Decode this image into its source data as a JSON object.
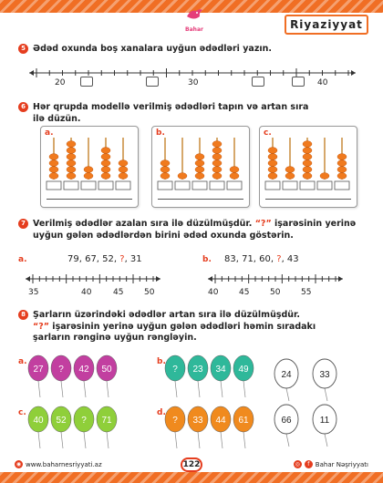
{
  "header": {
    "brand": "Bahar",
    "brand_sub": "Nəşriyyatı",
    "subject": "Riyaziyyat"
  },
  "colors": {
    "accent": "#f06e24",
    "task_badge": "#e53d1e"
  },
  "task5": {
    "num": "5",
    "text": "Ədəd oxunda boş xanalara uyğun ədədləri yazın.",
    "labels": [
      "20",
      "30",
      "40"
    ]
  },
  "task6": {
    "num": "6",
    "line1": "Hər qrupda modellə verilmiş ədədləri tapın və artan sıra",
    "line2": "ilə düzün.",
    "cards": [
      {
        "letter": "a.",
        "rods": [
          4,
          6,
          2,
          5,
          3
        ]
      },
      {
        "letter": "b.",
        "rods": [
          3,
          1,
          4,
          6,
          2
        ]
      },
      {
        "letter": "c.",
        "rods": [
          5,
          2,
          6,
          1,
          4
        ]
      }
    ]
  },
  "task7": {
    "num": "7",
    "line1_pre": "Verilmiş ədədlər azalan sıra ilə düzülmüşdür. ",
    "line1_q": "“?”",
    "line1_post": " işarəsinin yerinə",
    "line2": "uyğun gələn ədədlərdən birini ədəd oxunda göstərin.",
    "a": {
      "letter": "a.",
      "seq": "79, 67, 52, ",
      "q": "?",
      "tail": ", 31",
      "labels": [
        "35",
        "40",
        "45",
        "50"
      ]
    },
    "b": {
      "letter": "b.",
      "seq": "83, 71, 60, ",
      "q": "?",
      "tail": ", 43",
      "labels": [
        "40",
        "45",
        "50",
        "55"
      ]
    }
  },
  "task8": {
    "num": "8",
    "line1": "Şarların üzərindəki ədədlər artan sıra ilə düzülmüşdür.",
    "line2_q": "“?”",
    "line2_post": " işarəsinin yerinə uyğun gələn ədədləri həmin sıradakı",
    "line3": "şarların rənginə uyğun rəngləyin.",
    "groups": [
      {
        "letter": "a.",
        "balloons": [
          {
            "t": "27",
            "c": "#c23fa0"
          },
          {
            "t": "?",
            "c": "#c23fa0"
          },
          {
            "t": "42",
            "c": "#c23fa0"
          },
          {
            "t": "50",
            "c": "#c23fa0"
          }
        ]
      },
      {
        "letter": "b.",
        "balloons": [
          {
            "t": "?",
            "c": "#2fb89a"
          },
          {
            "t": "23",
            "c": "#2fb89a"
          },
          {
            "t": "34",
            "c": "#2fb89a"
          },
          {
            "t": "49",
            "c": "#2fb89a"
          }
        ]
      },
      {
        "letter": "c.",
        "balloons": [
          {
            "t": "40",
            "c": "#8fcf3a"
          },
          {
            "t": "52",
            "c": "#8fcf3a"
          },
          {
            "t": "?",
            "c": "#8fcf3a"
          },
          {
            "t": "71",
            "c": "#8fcf3a"
          }
        ]
      },
      {
        "letter": "d.",
        "balloons": [
          {
            "t": "?",
            "c": "#f08a1e"
          },
          {
            "t": "33",
            "c": "#f08a1e"
          },
          {
            "t": "44",
            "c": "#f08a1e"
          },
          {
            "t": "61",
            "c": "#f08a1e"
          }
        ]
      }
    ],
    "blank_balloons": [
      "24",
      "33",
      "66",
      "11"
    ]
  },
  "footer": {
    "website": "www.baharnesriyyati.az",
    "page": "122",
    "publisher": "Bahar Nəşriyyatı"
  }
}
